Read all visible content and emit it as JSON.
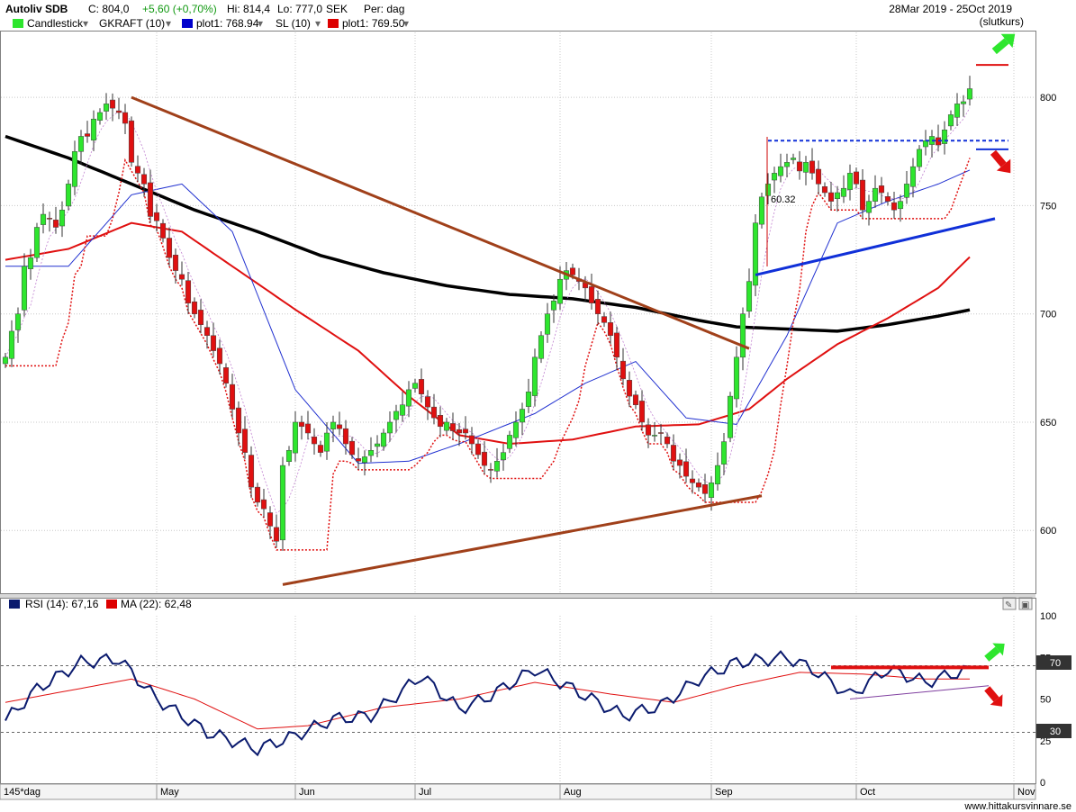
{
  "header": {
    "title": "Autoliv SDB",
    "close": "C: 804,0",
    "change": "+5,60 (+0,70%)",
    "high": "Hi: 814,4",
    "low": "Lo: 777,0",
    "currency": "SEK",
    "period": "Per: dag",
    "date_range": "28Mar 2019 - 25Oct 2019",
    "price_type": "(slutkurs)"
  },
  "legend": [
    {
      "label": "Candlestick",
      "color": "#2ee62e"
    },
    {
      "label": "GKRAFT (10)",
      "color": ""
    },
    {
      "label": "plot1: 768.94",
      "color": "#0000cc"
    },
    {
      "label": "SL (10)",
      "color": ""
    },
    {
      "label": "plot1: 769.50",
      "color": "#dd0000"
    }
  ],
  "rsi_legend": [
    {
      "label": "RSI (14): 67,16",
      "color": "#0a1a6e"
    },
    {
      "label": "MA (22): 62,48",
      "color": "#dd0000"
    }
  ],
  "bottom_left": "145*dag",
  "footer": "www.hittakursvinnare.se",
  "annotation": "60.32",
  "colors": {
    "up": "#2ee62e",
    "down": "#e01010",
    "ma_blue": "#2030d0",
    "ma_red": "#e01010",
    "ma_black": "#000000",
    "trend_brown": "#a0401a"
  },
  "chart_data": [
    {
      "type": "candlestick",
      "price_axis": {
        "min": 571,
        "max": 830,
        "ticks": [
          600,
          650,
          700,
          750,
          800
        ]
      },
      "time_labels": [
        "May",
        "Jun",
        "Jul",
        "Aug",
        "Sep",
        "Oct",
        "Nov"
      ],
      "close_series": [
        680,
        692,
        700,
        722,
        726,
        740,
        746,
        744,
        740,
        748,
        760,
        775,
        782,
        782,
        790,
        793,
        797,
        795,
        793,
        788,
        770,
        765,
        760,
        745,
        743,
        735,
        726,
        720,
        716,
        705,
        700,
        695,
        690,
        683,
        677,
        668,
        656,
        645,
        636,
        620,
        613,
        610,
        602,
        595,
        630,
        637,
        650,
        648,
        645,
        640,
        636,
        645,
        650,
        647,
        640,
        635,
        632,
        634,
        637,
        640,
        645,
        650,
        655,
        658,
        665,
        668,
        663,
        657,
        652,
        648,
        650,
        646,
        645,
        645,
        640,
        635,
        630,
        628,
        632,
        636,
        644,
        650,
        656,
        664,
        680,
        690,
        700,
        706,
        716,
        720,
        718,
        715,
        712,
        705,
        700,
        696,
        690,
        680,
        670,
        662,
        658,
        650,
        644,
        644,
        645,
        640,
        632,
        630,
        625,
        622,
        620,
        617,
        622,
        630,
        641,
        662,
        680,
        700,
        715,
        742,
        754,
        760,
        765,
        768,
        770,
        772,
        766,
        770,
        765,
        760,
        756,
        752,
        756,
        758,
        765,
        760,
        748,
        752,
        758,
        756,
        752,
        748,
        752,
        760,
        768,
        776,
        780,
        782,
        778,
        785,
        792,
        797,
        798,
        804
      ],
      "ma_blue": [
        {
          "i": 0,
          "v": 722
        },
        {
          "i": 10,
          "v": 722
        },
        {
          "i": 20,
          "v": 755
        },
        {
          "i": 28,
          "v": 760
        },
        {
          "i": 36,
          "v": 738
        },
        {
          "i": 46,
          "v": 665
        },
        {
          "i": 56,
          "v": 631
        },
        {
          "i": 64,
          "v": 632
        },
        {
          "i": 72,
          "v": 640
        },
        {
          "i": 84,
          "v": 654
        },
        {
          "i": 92,
          "v": 668
        },
        {
          "i": 100,
          "v": 678
        },
        {
          "i": 108,
          "v": 652
        },
        {
          "i": 116,
          "v": 649
        },
        {
          "i": 124,
          "v": 690
        },
        {
          "i": 132,
          "v": 742
        },
        {
          "i": 140,
          "v": 752
        },
        {
          "i": 148,
          "v": 760
        },
        {
          "i": 155,
          "v": 769
        }
      ],
      "ma_red": [
        {
          "i": 0,
          "v": 725
        },
        {
          "i": 10,
          "v": 730
        },
        {
          "i": 20,
          "v": 742
        },
        {
          "i": 28,
          "v": 738
        },
        {
          "i": 36,
          "v": 722
        },
        {
          "i": 46,
          "v": 702
        },
        {
          "i": 56,
          "v": 683
        },
        {
          "i": 64,
          "v": 662
        },
        {
          "i": 72,
          "v": 644
        },
        {
          "i": 80,
          "v": 640
        },
        {
          "i": 90,
          "v": 642
        },
        {
          "i": 100,
          "v": 648
        },
        {
          "i": 110,
          "v": 649
        },
        {
          "i": 118,
          "v": 656
        },
        {
          "i": 124,
          "v": 670
        },
        {
          "i": 132,
          "v": 686
        },
        {
          "i": 140,
          "v": 698
        },
        {
          "i": 148,
          "v": 712
        },
        {
          "i": 155,
          "v": 732
        }
      ],
      "ma_black": [
        {
          "i": 0,
          "v": 782
        },
        {
          "i": 10,
          "v": 772
        },
        {
          "i": 20,
          "v": 760
        },
        {
          "i": 30,
          "v": 748
        },
        {
          "i": 40,
          "v": 738
        },
        {
          "i": 50,
          "v": 727
        },
        {
          "i": 60,
          "v": 719
        },
        {
          "i": 70,
          "v": 713
        },
        {
          "i": 80,
          "v": 709
        },
        {
          "i": 90,
          "v": 707
        },
        {
          "i": 100,
          "v": 703
        },
        {
          "i": 110,
          "v": 697
        },
        {
          "i": 116,
          "v": 694
        },
        {
          "i": 124,
          "v": 693
        },
        {
          "i": 132,
          "v": 692
        },
        {
          "i": 140,
          "v": 695
        },
        {
          "i": 148,
          "v": 699
        },
        {
          "i": 155,
          "v": 703
        }
      ],
      "trend_lines": [
        {
          "from": {
            "i": 20,
            "v": 800
          },
          "to": {
            "i": 118,
            "v": 684
          },
          "color": "#a0401a"
        },
        {
          "from": {
            "i": 44,
            "v": 575
          },
          "to": {
            "i": 120,
            "v": 616
          },
          "color": "#a0401a"
        },
        {
          "from": {
            "i": 119,
            "v": 718
          },
          "to": {
            "i": 157,
            "v": 744
          },
          "color": "#1030d8"
        }
      ],
      "levels": [
        {
          "from": 121,
          "to": 160,
          "v": 780,
          "color": "#1030d8",
          "dash": true
        },
        {
          "from": 154,
          "to": 160,
          "v": 815,
          "color": "#e01010"
        },
        {
          "from": 154,
          "to": 160,
          "v": 776,
          "color": "#1030d8"
        }
      ]
    },
    {
      "type": "line",
      "axis": {
        "min": 0,
        "max": 100,
        "ticks": [
          0,
          25,
          50,
          75,
          100
        ]
      },
      "levels": [
        70,
        30
      ],
      "rsi": [
        {
          "i": 0,
          "v": 37
        },
        {
          "i": 5,
          "v": 56
        },
        {
          "i": 12,
          "v": 72
        },
        {
          "i": 18,
          "v": 74
        },
        {
          "i": 24,
          "v": 50
        },
        {
          "i": 32,
          "v": 30
        },
        {
          "i": 40,
          "v": 20
        },
        {
          "i": 46,
          "v": 28
        },
        {
          "i": 52,
          "v": 38
        },
        {
          "i": 58,
          "v": 40
        },
        {
          "i": 66,
          "v": 64
        },
        {
          "i": 72,
          "v": 44
        },
        {
          "i": 76,
          "v": 50
        },
        {
          "i": 84,
          "v": 68
        },
        {
          "i": 92,
          "v": 52
        },
        {
          "i": 98,
          "v": 40
        },
        {
          "i": 104,
          "v": 46
        },
        {
          "i": 110,
          "v": 62
        },
        {
          "i": 116,
          "v": 72
        },
        {
          "i": 124,
          "v": 75
        },
        {
          "i": 128,
          "v": 68
        },
        {
          "i": 134,
          "v": 52
        },
        {
          "i": 140,
          "v": 68
        },
        {
          "i": 146,
          "v": 60
        },
        {
          "i": 152,
          "v": 67
        },
        {
          "i": 155,
          "v": 67
        }
      ],
      "rsi_ma": [
        {
          "i": 0,
          "v": 48
        },
        {
          "i": 10,
          "v": 55
        },
        {
          "i": 20,
          "v": 62
        },
        {
          "i": 30,
          "v": 50
        },
        {
          "i": 40,
          "v": 32
        },
        {
          "i": 48,
          "v": 34
        },
        {
          "i": 60,
          "v": 45
        },
        {
          "i": 72,
          "v": 50
        },
        {
          "i": 84,
          "v": 60
        },
        {
          "i": 96,
          "v": 53
        },
        {
          "i": 106,
          "v": 48
        },
        {
          "i": 116,
          "v": 58
        },
        {
          "i": 126,
          "v": 66
        },
        {
          "i": 136,
          "v": 65
        },
        {
          "i": 146,
          "v": 62
        },
        {
          "i": 155,
          "v": 62
        }
      ],
      "label_70": "70",
      "label_30": "30"
    }
  ]
}
